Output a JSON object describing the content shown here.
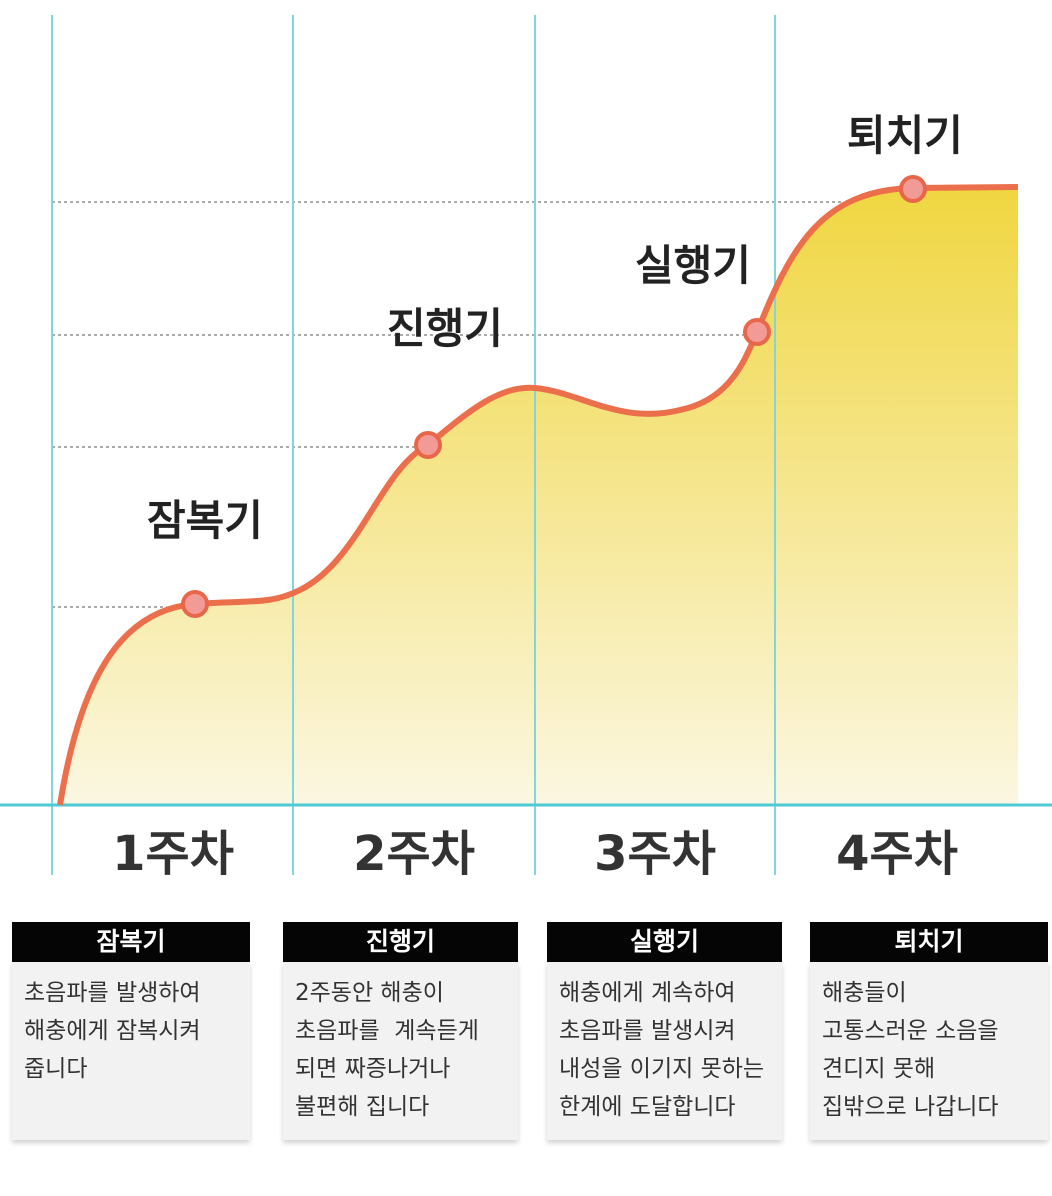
{
  "stages": [
    {
      "label": "잠복기"
    },
    {
      "label": "진행기"
    },
    {
      "label": "실행기"
    },
    {
      "label": "퇴치기"
    }
  ],
  "weeks": [
    "1주차",
    "2주차",
    "3주차",
    "4주차"
  ],
  "cards": [
    {
      "title": "잠복기",
      "lines": [
        "초음파를 발생하여",
        "해충에게 잠복시켜",
        "줍니다"
      ]
    },
    {
      "title": "진행기",
      "lines": [
        "2주동안 해충이",
        "초음파를  계속듣게",
        "되면 짜증나거나",
        "불편해 집니다"
      ]
    },
    {
      "title": "실행기",
      "lines": [
        "해충에게 계속하여",
        "초음파를 발생시켜",
        "내성을 이기지 못하는",
        "한계에 도달합니다"
      ]
    },
    {
      "title": "퇴치기",
      "lines": [
        "해충들이",
        "고통스러운 소음을",
        "견디지 못해",
        "집밖으로 나갑니다"
      ]
    }
  ]
}
